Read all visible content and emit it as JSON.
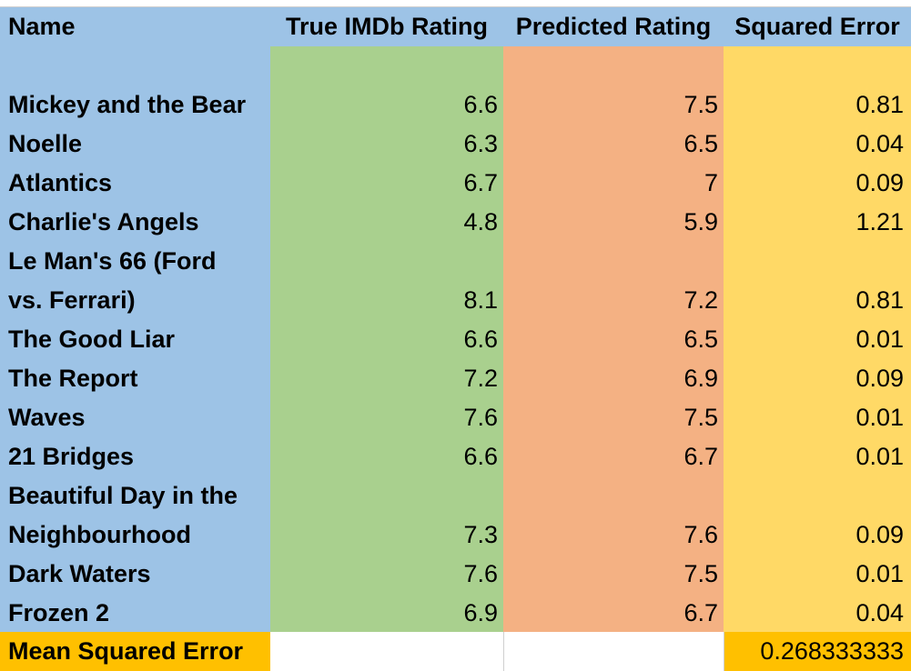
{
  "colors": {
    "name_col": "#9dc3e6",
    "true_col": "#a9d08e",
    "pred_col": "#f4b183",
    "err_col": "#ffd966",
    "mse_label_bg": "#ffc000",
    "mse_value_bg": "#ffc000"
  },
  "headers": {
    "name": "Name",
    "true": "True IMDb Rating",
    "pred": "Predicted Rating",
    "err": "Squared Error"
  },
  "rows": [
    {
      "name": "Mickey and the Bear",
      "true": "6.6",
      "pred": "7.5",
      "err": "0.81"
    },
    {
      "name": "Noelle",
      "true": "6.3",
      "pred": "6.5",
      "err": "0.04"
    },
    {
      "name": "Atlantics",
      "true": "6.7",
      "pred": "7",
      "err": "0.09"
    },
    {
      "name": "Charlie's Angels",
      "true": "4.8",
      "pred": "5.9",
      "err": "1.21"
    },
    {
      "name": "Le Man's 66 (Ford",
      "true": "",
      "pred": "",
      "err": ""
    },
    {
      "name": "vs. Ferrari)",
      "true": "8.1",
      "pred": "7.2",
      "err": "0.81"
    },
    {
      "name": "The Good Liar",
      "true": "6.6",
      "pred": "6.5",
      "err": "0.01"
    },
    {
      "name": "The Report",
      "true": "7.2",
      "pred": "6.9",
      "err": "0.09"
    },
    {
      "name": "Waves",
      "true": "7.6",
      "pred": "7.5",
      "err": "0.01"
    },
    {
      "name": "21 Bridges",
      "true": "6.6",
      "pred": "6.7",
      "err": "0.01"
    },
    {
      "name": "Beautiful Day in the",
      "true": "",
      "pred": "",
      "err": ""
    },
    {
      "name": "Neighbourhood",
      "true": "7.3",
      "pred": "7.6",
      "err": "0.09"
    },
    {
      "name": "Dark Waters",
      "true": "7.6",
      "pred": "7.5",
      "err": "0.01"
    },
    {
      "name": "Frozen 2",
      "true": "6.9",
      "pred": "6.7",
      "err": "0.04"
    }
  ],
  "footer": {
    "label": "Mean Squared Error",
    "value": "0.268333333"
  }
}
